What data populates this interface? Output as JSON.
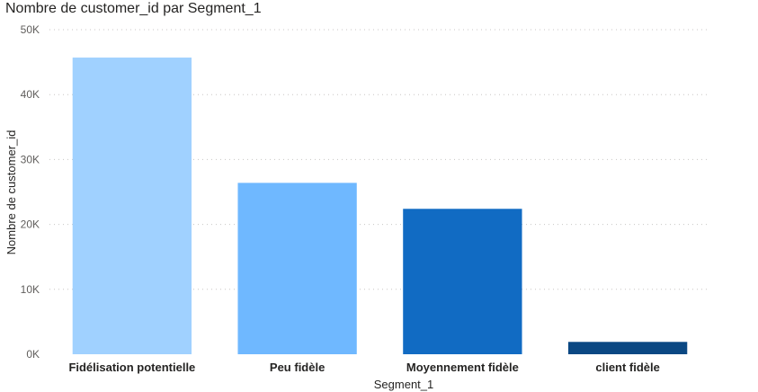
{
  "chart_data": {
    "type": "bar",
    "title": "Nombre de customer_id par Segment_1",
    "xlabel": "Segment_1",
    "ylabel": "Nombre de customer_id",
    "categories": [
      "Fidélisation potentielle",
      "Peu fidèle",
      "Moyennement fidèle",
      "client fidèle"
    ],
    "values": [
      45700,
      26400,
      22400,
      1900
    ],
    "colors": [
      "#a0d1ff",
      "#6fb8ff",
      "#116bc3",
      "#0b4883"
    ],
    "ylim": [
      0,
      50000
    ],
    "yticks": [
      {
        "value": 0,
        "label": "0K"
      },
      {
        "value": 10000,
        "label": "10K"
      },
      {
        "value": 20000,
        "label": "20K"
      },
      {
        "value": 30000,
        "label": "30K"
      },
      {
        "value": 40000,
        "label": "40K"
      },
      {
        "value": 50000,
        "label": "50K"
      }
    ],
    "grid": true,
    "legend": "none"
  }
}
